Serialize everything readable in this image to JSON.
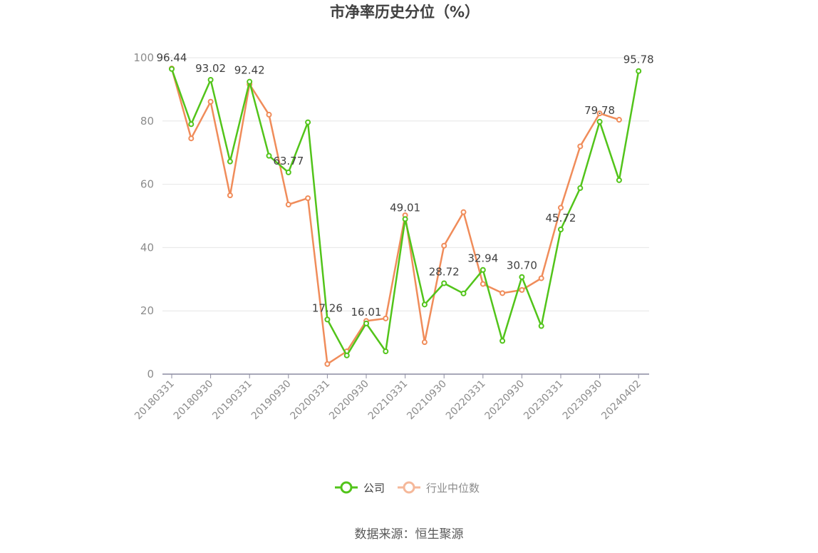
{
  "title": "市净率历史分位（%）",
  "source": "数据来源：恒生聚源",
  "chart_data": {
    "type": "line",
    "title": "市净率历史分位（%）",
    "ylim": [
      0,
      100
    ],
    "yticks": [
      0,
      20,
      40,
      60,
      80,
      100
    ],
    "grid": true,
    "legend_position": "bottom-center",
    "x": [
      "20180331",
      "20180630",
      "20180930",
      "20181231",
      "20190331",
      "20190630",
      "20190930",
      "20191231",
      "20200331",
      "20200630",
      "20200930",
      "20201231",
      "20210331",
      "20210630",
      "20210930",
      "20211231",
      "20220331",
      "20220630",
      "20220930",
      "20221231",
      "20230331",
      "20230630",
      "20230930",
      "20231231",
      "20240402"
    ],
    "xtick_labels": [
      "20180331",
      "20180930",
      "20190331",
      "20190930",
      "20200331",
      "20200930",
      "20210331",
      "20210930",
      "20220331",
      "20220930",
      "20230331",
      "20230930",
      "20240402"
    ],
    "series": [
      {
        "name": "公司",
        "color": "#52c41a",
        "values": [
          96.44,
          79.0,
          93.02,
          67.2,
          92.42,
          69.0,
          63.77,
          79.6,
          17.26,
          5.9,
          16.01,
          7.2,
          49.01,
          22.0,
          28.72,
          25.5,
          32.94,
          10.5,
          30.7,
          15.2,
          45.72,
          58.8,
          79.78,
          61.3,
          95.78
        ],
        "labels": {
          "0": "96.44",
          "2": "93.02",
          "4": "92.42",
          "6": "63.77",
          "8": "17.26",
          "10": "16.01",
          "12": "49.01",
          "14": "28.72",
          "16": "32.94",
          "18": "30.70",
          "20": "45.72",
          "22": "79.78",
          "24": "95.78"
        }
      },
      {
        "name": "行业中位数",
        "color": "#f08c5a",
        "values": [
          96.6,
          74.5,
          86.1,
          56.5,
          91.6,
          82.0,
          53.6,
          55.6,
          3.2,
          7.2,
          16.8,
          17.6,
          50.2,
          10.1,
          40.6,
          51.2,
          28.5,
          25.6,
          26.6,
          30.3,
          52.6,
          72.0,
          82.4,
          80.4,
          null
        ]
      }
    ]
  },
  "legend": [
    {
      "label": "公司",
      "color": "#52c41a"
    },
    {
      "label": "行业中位数",
      "color": "#f5b89a"
    }
  ]
}
